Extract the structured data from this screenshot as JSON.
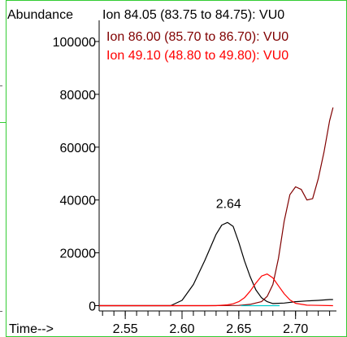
{
  "chart_data": {
    "type": "line",
    "ylabel": "Abundance",
    "xlabel": "Time-->",
    "xlim": [
      2.527,
      2.736
    ],
    "ylim": [
      -2000,
      108000
    ],
    "xticks": [
      2.55,
      2.6,
      2.65,
      2.7
    ],
    "xtick_labels": [
      "2.55",
      "2.60",
      "2.65",
      "2.70"
    ],
    "yticks": [
      0,
      20000,
      40000,
      60000,
      80000,
      100000
    ],
    "ytick_labels": [
      "0",
      "20000",
      "40000",
      "60000",
      "80000",
      "100000"
    ],
    "legend_placement": "top",
    "series": [
      {
        "name": "Ion  84.05 (83.75 to 84.75): VU0",
        "color": "#000000",
        "x": [
          2.527,
          2.59,
          2.6,
          2.61,
          2.62,
          2.63,
          2.635,
          2.64,
          2.645,
          2.65,
          2.655,
          2.66,
          2.665,
          2.67,
          2.675,
          2.68,
          2.69,
          2.7,
          2.71,
          2.72,
          2.73,
          2.733
        ],
        "y": [
          0,
          0,
          2000,
          8000,
          17000,
          27000,
          30500,
          31500,
          30000,
          24000,
          17000,
          11000,
          6000,
          3000,
          1500,
          800,
          1000,
          1500,
          1800,
          2000,
          2300,
          2300
        ]
      },
      {
        "name": "Ion  86.00 (85.70 to 86.70): VU0",
        "color": "#800000",
        "x": [
          2.527,
          2.62,
          2.65,
          2.66,
          2.67,
          2.675,
          2.68,
          2.685,
          2.69,
          2.695,
          2.7,
          2.705,
          2.71,
          2.715,
          2.72,
          2.725,
          2.73,
          2.733
        ],
        "y": [
          0,
          0,
          100,
          500,
          1500,
          3500,
          8000,
          18000,
          32000,
          42000,
          45000,
          44000,
          40000,
          40500,
          48000,
          58000,
          70000,
          75000
        ]
      },
      {
        "name": "Ion  49.10 (48.80 to 49.80): VU0",
        "color": "#ff0000",
        "x": [
          2.527,
          2.63,
          2.64,
          2.645,
          2.65,
          2.655,
          2.66,
          2.665,
          2.67,
          2.675,
          2.68,
          2.685,
          2.69,
          2.695,
          2.7,
          2.71,
          2.733
        ],
        "y": [
          0,
          0,
          300,
          700,
          1500,
          3000,
          5500,
          8500,
          11200,
          12000,
          10500,
          7500,
          4500,
          2200,
          900,
          200,
          0
        ]
      },
      {
        "name": "",
        "color": "#00cccc",
        "x": [
          2.652,
          2.686
        ],
        "y": [
          0,
          0
        ]
      }
    ],
    "annotations": [
      {
        "text": "2.64",
        "x": 2.641,
        "y": 36000
      }
    ]
  }
}
